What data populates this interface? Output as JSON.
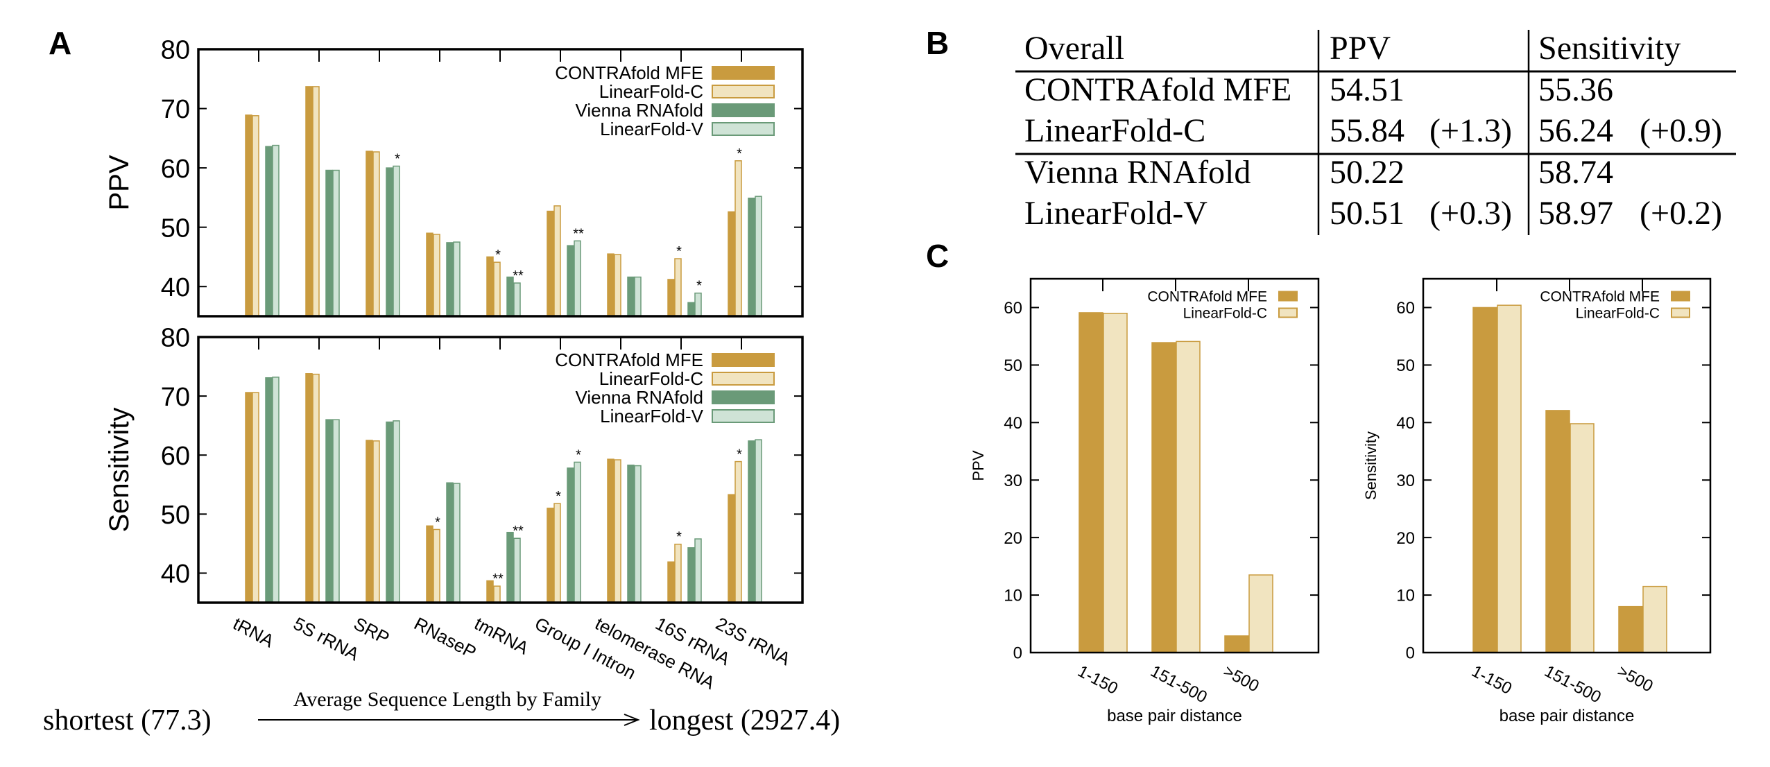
{
  "panel_labels": {
    "a": "A",
    "b": "B",
    "c": "C"
  },
  "colors": {
    "contrafold_mfe": "#c99b3f",
    "linearfold_c": "#f1e4c0",
    "vienna_rnafold": "#6a9a78",
    "linearfold_v": "#cfe3d6"
  },
  "chart_data": [
    {
      "type": "bar",
      "panel": "A",
      "title": "",
      "xlabel": "",
      "ylabel": "PPV",
      "ylim": [
        35,
        80
      ],
      "yticks": [
        40,
        50,
        60,
        70,
        80
      ],
      "grid": false,
      "legend": "top-right",
      "categories": [
        "tRNA",
        "5S rRNA",
        "SRP",
        "RNaseP",
        "tmRNA",
        "Group I Intron",
        "telomerase RNA",
        "16S rRNA",
        "23S rRNA"
      ],
      "series": [
        {
          "name": "CONTRAfold MFE",
          "values": [
            68.9,
            73.7,
            62.8,
            49.0,
            45.0,
            52.7,
            45.5,
            41.2,
            52.6
          ],
          "annotations": [
            "",
            "",
            "",
            "",
            "",
            "",
            "",
            "",
            ""
          ]
        },
        {
          "name": "LinearFold-C",
          "values": [
            68.8,
            73.7,
            62.7,
            48.8,
            44.1,
            53.6,
            45.4,
            44.7,
            61.2
          ],
          "annotations": [
            "",
            "",
            "",
            "",
            "*",
            "",
            "",
            "*",
            "*"
          ]
        },
        {
          "name": "Vienna RNAfold",
          "values": [
            63.6,
            59.6,
            60.0,
            47.4,
            41.6,
            46.9,
            41.6,
            37.3,
            54.9
          ],
          "annotations": [
            "",
            "",
            "",
            "",
            "",
            "",
            "",
            "",
            ""
          ]
        },
        {
          "name": "LinearFold-V",
          "values": [
            63.8,
            59.6,
            60.3,
            47.5,
            40.6,
            47.7,
            41.6,
            38.9,
            55.2
          ],
          "annotations": [
            "",
            "",
            "*",
            "",
            "**",
            "**",
            "",
            "*",
            ""
          ]
        }
      ]
    },
    {
      "type": "bar",
      "panel": "A",
      "title": "",
      "xlabel": "",
      "ylabel": "Sensitivity",
      "ylim": [
        35,
        80
      ],
      "yticks": [
        40,
        50,
        60,
        70,
        80
      ],
      "grid": false,
      "legend": "top-right",
      "categories": [
        "tRNA",
        "5S rRNA",
        "SRP",
        "RNaseP",
        "tmRNA",
        "Group I Intron",
        "telomerase RNA",
        "16S rRNA",
        "23S rRNA"
      ],
      "series": [
        {
          "name": "CONTRAfold MFE",
          "values": [
            70.6,
            73.8,
            62.5,
            48.0,
            38.7,
            51.0,
            59.3,
            41.9,
            53.3
          ],
          "annotations": [
            "",
            "",
            "",
            "",
            "",
            "",
            "",
            "",
            ""
          ]
        },
        {
          "name": "LinearFold-C",
          "values": [
            70.6,
            73.7,
            62.4,
            47.4,
            37.8,
            51.8,
            59.2,
            44.9,
            58.9
          ],
          "annotations": [
            "",
            "",
            "",
            "*",
            "**",
            "*",
            "",
            "*",
            "*"
          ]
        },
        {
          "name": "Vienna RNAfold",
          "values": [
            73.1,
            66.0,
            65.6,
            55.3,
            46.9,
            57.8,
            58.3,
            44.3,
            62.4
          ],
          "annotations": [
            "",
            "",
            "",
            "",
            "",
            "",
            "",
            "",
            ""
          ]
        },
        {
          "name": "LinearFold-V",
          "values": [
            73.2,
            66.0,
            65.8,
            55.2,
            45.9,
            58.8,
            58.2,
            45.8,
            62.6
          ],
          "annotations": [
            "",
            "",
            "",
            "",
            "**",
            "*",
            "",
            "",
            ""
          ]
        }
      ]
    },
    {
      "type": "bar",
      "panel": "C",
      "title": "",
      "xlabel": "base pair distance",
      "ylabel": "PPV",
      "ylim": [
        0,
        65
      ],
      "yticks": [
        0,
        10,
        20,
        30,
        40,
        50,
        60
      ],
      "grid": false,
      "legend": "top-right",
      "categories": [
        "1-150",
        "151-500",
        ">500"
      ],
      "series": [
        {
          "name": "CONTRAfold MFE",
          "values": [
            59.1,
            53.9,
            2.9
          ]
        },
        {
          "name": "LinearFold-C",
          "values": [
            59.0,
            54.1,
            13.5
          ]
        }
      ]
    },
    {
      "type": "bar",
      "panel": "C",
      "title": "",
      "xlabel": "base pair distance",
      "ylabel": "Sensitivity",
      "ylim": [
        0,
        65
      ],
      "yticks": [
        0,
        10,
        20,
        30,
        40,
        50,
        60
      ],
      "grid": false,
      "legend": "top-right",
      "categories": [
        "1-150",
        "151-500",
        ">500"
      ],
      "series": [
        {
          "name": "CONTRAfold MFE",
          "values": [
            60.0,
            42.1,
            8.0
          ]
        },
        {
          "name": "LinearFold-C",
          "values": [
            60.4,
            39.8,
            11.5
          ]
        }
      ]
    }
  ],
  "length_axis": {
    "left": "shortest (77.3)",
    "caption": "Average Sequence Length by Family",
    "right": "longest (2927.4)"
  },
  "table": {
    "headers": [
      "Overall",
      "PPV",
      "Sensitivity"
    ],
    "rows": [
      {
        "name": "CONTRAfold MFE",
        "ppv": "54.51",
        "ppv_delta": "",
        "sens": "55.36",
        "sens_delta": ""
      },
      {
        "name": "LinearFold-C",
        "ppv": "55.84",
        "ppv_delta": "(+1.3)",
        "sens": "56.24",
        "sens_delta": "(+0.9)"
      },
      {
        "name": "Vienna RNAfold",
        "ppv": "50.22",
        "ppv_delta": "",
        "sens": "58.74",
        "sens_delta": ""
      },
      {
        "name": "LinearFold-V",
        "ppv": "50.51",
        "ppv_delta": "(+0.3)",
        "sens": "58.97",
        "sens_delta": "(+0.2)"
      }
    ]
  }
}
